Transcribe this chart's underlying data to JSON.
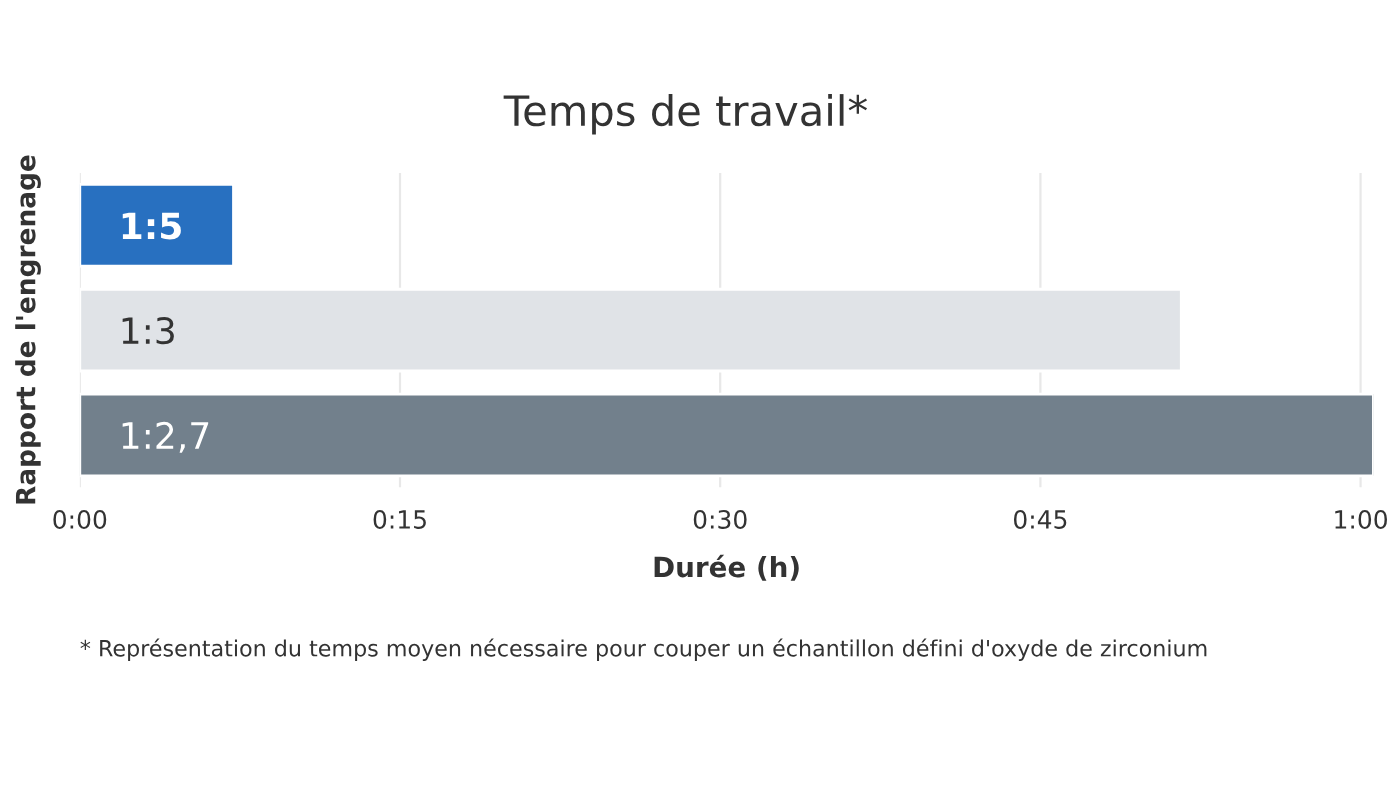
{
  "chart_data": {
    "type": "bar",
    "orientation": "horizontal",
    "title": "Temps de travail*",
    "xlabel": "Durée (h)",
    "ylabel": "Rapport de l'engrenage",
    "categories": [
      "1:5",
      "1:3",
      "1:2,7"
    ],
    "values": [
      0.12,
      0.86,
      1.01
    ],
    "colors": [
      "#2870c0",
      "#e0e3e7",
      "#72808c"
    ],
    "xlim": [
      0,
      1.01
    ],
    "xticks": [
      {
        "value": 0,
        "label": "0:00"
      },
      {
        "value": 0.25,
        "label": "0:15"
      },
      {
        "value": 0.5,
        "label": "0:30"
      },
      {
        "value": 0.75,
        "label": "0:45"
      },
      {
        "value": 1,
        "label": "1:00"
      }
    ],
    "grid": "x",
    "legend": false,
    "annotations": [
      "* Représentation du temps moyen nécessaire pour couper un échantillon défini d'oxyde de zirconium"
    ]
  }
}
